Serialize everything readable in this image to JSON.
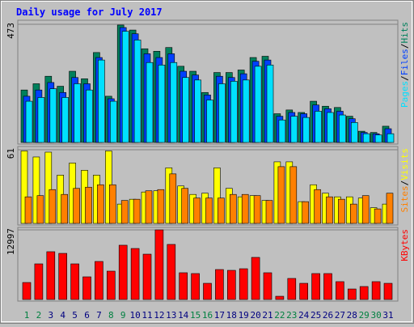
{
  "title": "Daily usage for July 2017",
  "chart_data": [
    {
      "type": "bar",
      "legend_separator": "/",
      "ylim": [
        0,
        473
      ],
      "yticks": [
        473
      ],
      "series": [
        {
          "name": "Hits",
          "color": "#00805c",
          "values": [
            210,
            235,
            265,
            225,
            285,
            255,
            360,
            185,
            470,
            450,
            375,
            365,
            380,
            305,
            285,
            200,
            280,
            280,
            290,
            340,
            345,
            115,
            130,
            120,
            165,
            145,
            140,
            105,
            45,
            40,
            65
          ]
        },
        {
          "name": "Files",
          "color": "#0040ff",
          "values": [
            185,
            210,
            240,
            200,
            260,
            235,
            340,
            175,
            460,
            435,
            355,
            340,
            355,
            285,
            270,
            190,
            265,
            260,
            275,
            325,
            330,
            105,
            120,
            115,
            150,
            135,
            125,
            95,
            40,
            35,
            55
          ]
        },
        {
          "name": "Pages",
          "color": "#00e0ff",
          "values": [
            165,
            180,
            215,
            180,
            235,
            210,
            330,
            165,
            445,
            410,
            320,
            310,
            320,
            260,
            250,
            170,
            235,
            245,
            250,
            305,
            310,
            90,
            105,
            100,
            125,
            120,
            110,
            80,
            35,
            30,
            35
          ]
        }
      ]
    },
    {
      "type": "bar",
      "legend_separator": "/",
      "ylim": [
        0,
        61
      ],
      "yticks": [
        61
      ],
      "series": [
        {
          "name": "Visits",
          "color": "#ffff00",
          "values": [
            60,
            55,
            59,
            40,
            50,
            44,
            40,
            60,
            16,
            20,
            26,
            27,
            46,
            31,
            24,
            25,
            46,
            29,
            22,
            23,
            19,
            51,
            51,
            18,
            32,
            25,
            22,
            22,
            21,
            13,
            16
          ]
        },
        {
          "name": "Sites",
          "color": "#ff8000",
          "values": [
            22,
            23,
            28,
            24,
            29,
            30,
            32,
            32,
            19,
            20,
            27,
            28,
            41,
            29,
            21,
            21,
            21,
            24,
            24,
            23,
            19,
            47,
            47,
            18,
            28,
            22,
            20,
            16,
            23,
            12,
            25
          ]
        }
      ]
    },
    {
      "type": "bar",
      "ylim": [
        0,
        12997
      ],
      "yticks": [
        12997
      ],
      "categories": [
        "1",
        "2",
        "3",
        "4",
        "5",
        "6",
        "7",
        "8",
        "9",
        "10",
        "11",
        "12",
        "13",
        "14",
        "15",
        "16",
        "17",
        "18",
        "19",
        "20",
        "21",
        "22",
        "23",
        "24",
        "25",
        "26",
        "27",
        "28",
        "29",
        "30",
        "31"
      ],
      "category_colors": [
        "#008040",
        "#008040",
        "#000080",
        "#000080",
        "#000080",
        "#000080",
        "#000080",
        "#008040",
        "#008040",
        "#000080",
        "#000080",
        "#000080",
        "#000080",
        "#000080",
        "#008040",
        "#008040",
        "#000080",
        "#000080",
        "#000080",
        "#000080",
        "#000080",
        "#008040",
        "#008040",
        "#000080",
        "#000080",
        "#000080",
        "#000080",
        "#000080",
        "#008040",
        "#008040",
        "#000080"
      ],
      "series": [
        {
          "name": "KBytes",
          "color": "#ff0000",
          "values": [
            3170,
            6650,
            8920,
            8610,
            6650,
            4230,
            7100,
            5290,
            10130,
            9520,
            8460,
            12997,
            10280,
            4990,
            4840,
            3020,
            5590,
            5440,
            5740,
            7860,
            4990,
            600,
            3930,
            3020,
            4840,
            4840,
            3330,
            1960,
            2420,
            3330,
            3020
          ]
        }
      ]
    }
  ]
}
